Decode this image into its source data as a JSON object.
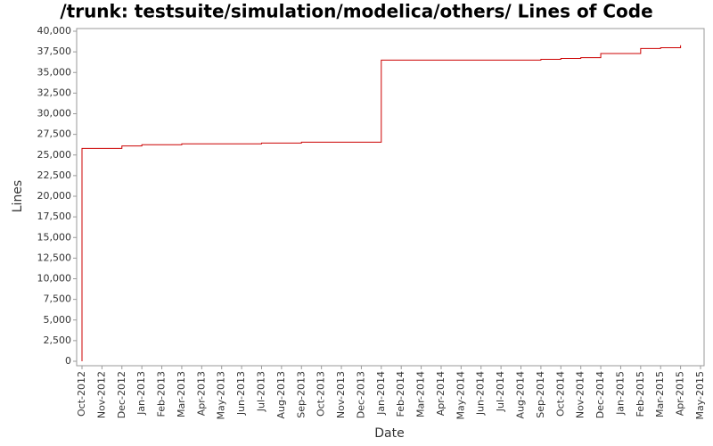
{
  "chart_data": {
    "type": "line",
    "title": "/trunk: testsuite/simulation/modelica/others/ Lines of Code",
    "x_label": "Date",
    "y_label": "Lines",
    "x": [
      "2012-10",
      "2012-10",
      "2012-12",
      "2012-12",
      "2013-01",
      "2013-01",
      "2013-03",
      "2013-03",
      "2013-07",
      "2013-07",
      "2013-09",
      "2013-09",
      "2014-01",
      "2014-01",
      "2014-09",
      "2014-09",
      "2014-10",
      "2014-10",
      "2014-11",
      "2014-11",
      "2014-12",
      "2014-12",
      "2015-02",
      "2015-02",
      "2015-03",
      "2015-03",
      "2015-04",
      "2015-04"
    ],
    "series": [
      {
        "name": "Lines",
        "color": "#cc0000",
        "values": [
          0,
          25800,
          25800,
          26100,
          26100,
          26250,
          26250,
          26350,
          26350,
          26450,
          26450,
          26550,
          26550,
          36500,
          36500,
          36600,
          36600,
          36700,
          36700,
          36800,
          36800,
          37300,
          37300,
          37900,
          37900,
          38000,
          38000,
          38300
        ]
      }
    ],
    "xlim": [
      "2012-10",
      "2015-05"
    ],
    "xticks": [
      {
        "value": "2012-10",
        "label": "Oct-2012"
      },
      {
        "value": "2012-11",
        "label": "Nov-2012"
      },
      {
        "value": "2012-12",
        "label": "Dec-2012"
      },
      {
        "value": "2013-01",
        "label": "Jan-2013"
      },
      {
        "value": "2013-02",
        "label": "Feb-2013"
      },
      {
        "value": "2013-03",
        "label": "Mar-2013"
      },
      {
        "value": "2013-04",
        "label": "Apr-2013"
      },
      {
        "value": "2013-05",
        "label": "May-2013"
      },
      {
        "value": "2013-06",
        "label": "Jun-2013"
      },
      {
        "value": "2013-07",
        "label": "Jul-2013"
      },
      {
        "value": "2013-08",
        "label": "Aug-2013"
      },
      {
        "value": "2013-09",
        "label": "Sep-2013"
      },
      {
        "value": "2013-10",
        "label": "Oct-2013"
      },
      {
        "value": "2013-11",
        "label": "Nov-2013"
      },
      {
        "value": "2013-12",
        "label": "Dec-2013"
      },
      {
        "value": "2014-01",
        "label": "Jan-2014"
      },
      {
        "value": "2014-02",
        "label": "Feb-2014"
      },
      {
        "value": "2014-03",
        "label": "Mar-2014"
      },
      {
        "value": "2014-04",
        "label": "Apr-2014"
      },
      {
        "value": "2014-05",
        "label": "May-2014"
      },
      {
        "value": "2014-06",
        "label": "Jun-2014"
      },
      {
        "value": "2014-07",
        "label": "Jul-2014"
      },
      {
        "value": "2014-08",
        "label": "Aug-2014"
      },
      {
        "value": "2014-09",
        "label": "Sep-2014"
      },
      {
        "value": "2014-10",
        "label": "Oct-2014"
      },
      {
        "value": "2014-11",
        "label": "Nov-2014"
      },
      {
        "value": "2014-12",
        "label": "Dec-2014"
      },
      {
        "value": "2015-01",
        "label": "Jan-2015"
      },
      {
        "value": "2015-02",
        "label": "Feb-2015"
      },
      {
        "value": "2015-03",
        "label": "Mar-2015"
      },
      {
        "value": "2015-04",
        "label": "Apr-2015"
      },
      {
        "value": "2015-05",
        "label": "May-2015"
      }
    ],
    "ylim": [
      0,
      40000
    ],
    "yticks": [
      0,
      {
        "value": 2500,
        "label": "2,500"
      },
      {
        "value": 5000,
        "label": "5,000"
      },
      {
        "value": 7500,
        "label": "7,500"
      },
      {
        "value": 10000,
        "label": "10,000"
      },
      {
        "value": 12500,
        "label": "12,500"
      },
      {
        "value": 15000,
        "label": "15,000"
      },
      {
        "value": 17500,
        "label": "17,500"
      },
      {
        "value": 20000,
        "label": "20,000"
      },
      {
        "value": 22500,
        "label": "22,500"
      },
      {
        "value": 25000,
        "label": "25,000"
      },
      {
        "value": 27500,
        "label": "27,500"
      },
      {
        "value": 30000,
        "label": "30,000"
      },
      {
        "value": 32500,
        "label": "32,500"
      },
      {
        "value": 35000,
        "label": "35,000"
      },
      {
        "value": 37500,
        "label": "37,500"
      },
      {
        "value": 40000,
        "label": "40,000"
      }
    ],
    "grid": false
  }
}
